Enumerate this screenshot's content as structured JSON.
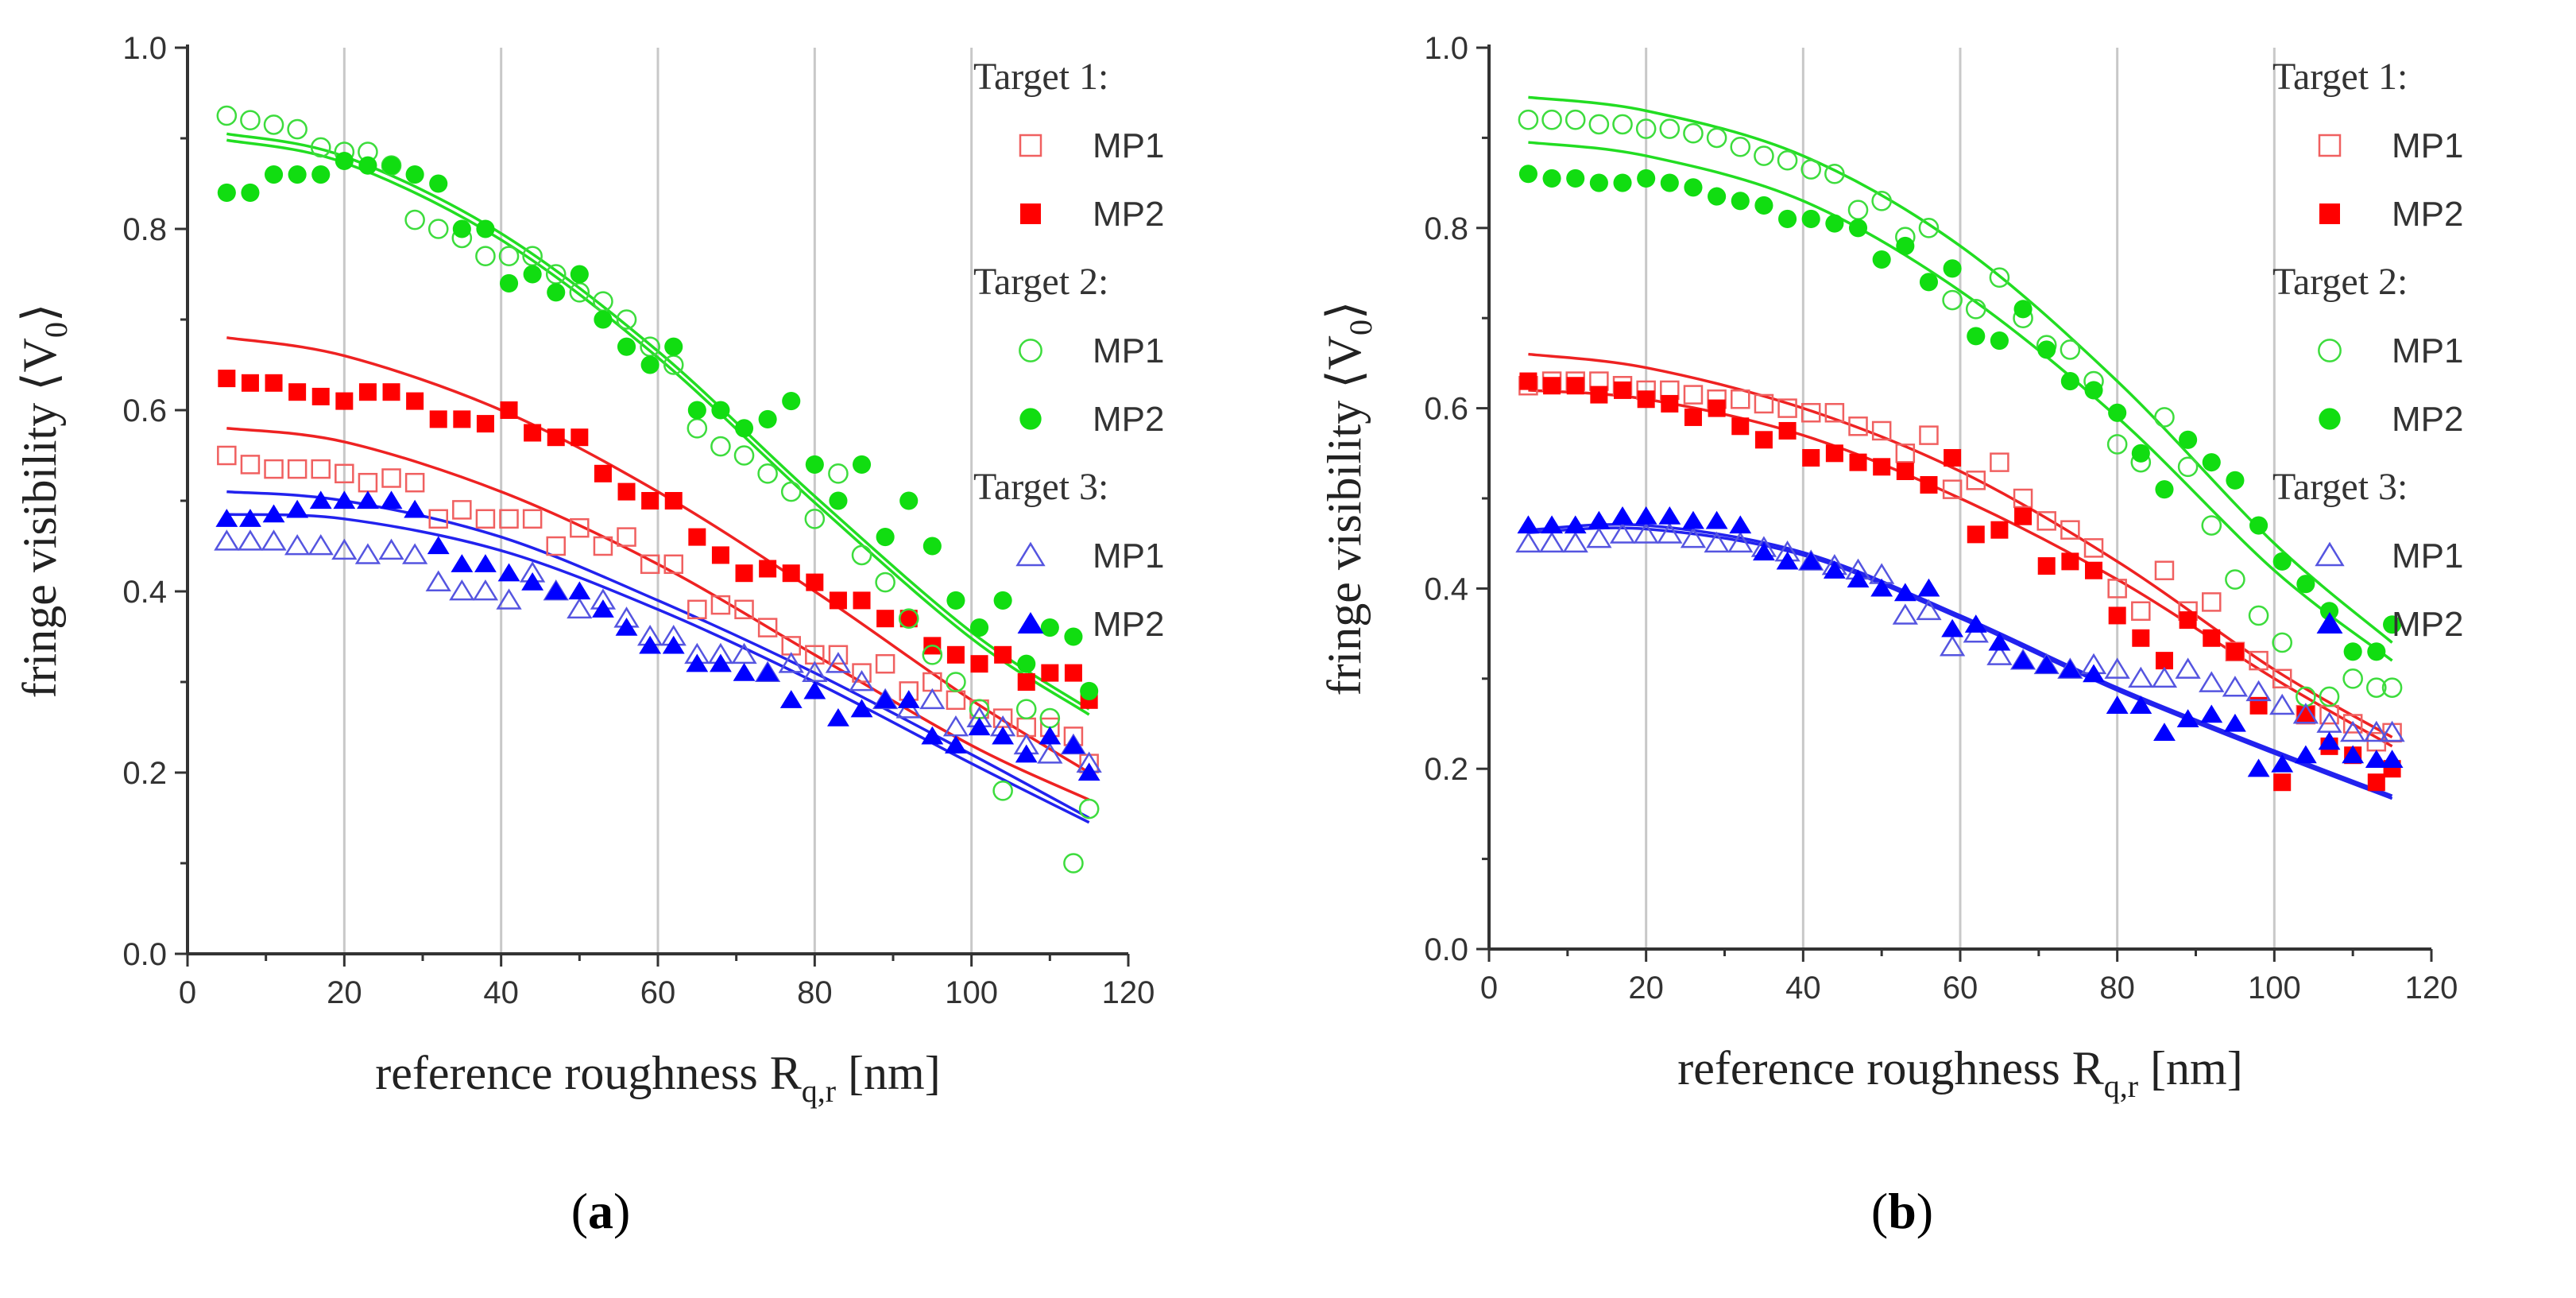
{
  "chart_data": [
    {
      "type": "scatter",
      "panel_label": "a",
      "xlabel": "reference roughness R",
      "xlabel_sub": "q,r",
      "xlabel_unit": "[nm]",
      "ylabel": "fringe visibility",
      "ylabel_symbol": "V",
      "ylabel_sub": "0",
      "xlim": [
        0,
        120
      ],
      "ylim": [
        0,
        1.0
      ],
      "xticks": [
        "0",
        "20",
        "40",
        "60",
        "80",
        "100",
        "120"
      ],
      "yticks": [
        "0.0",
        "0.2",
        "0.4",
        "0.6",
        "0.8",
        "1.0"
      ],
      "grid": "vertical",
      "legend_placement": "top-right",
      "legend": [
        {
          "heading": "Target 1:",
          "items": [
            "MP1",
            "MP2"
          ]
        },
        {
          "heading": "Target 2:",
          "items": [
            "MP1",
            "MP2"
          ]
        },
        {
          "heading": "Target 3:",
          "items": [
            "MP1",
            "MP2"
          ]
        }
      ],
      "x": [
        5,
        8,
        11,
        14,
        17,
        20,
        23,
        26,
        29,
        32,
        35,
        38,
        41,
        44,
        47,
        50,
        53,
        56,
        59,
        62,
        65,
        68,
        71,
        74,
        77,
        80,
        83,
        86,
        89,
        92,
        95,
        98,
        101,
        104,
        107,
        110,
        113,
        115
      ],
      "series": [
        {
          "name": "Target 1 MP1",
          "color": "#f06060",
          "marker": "square",
          "filled": false,
          "values": [
            0.55,
            0.54,
            0.535,
            0.535,
            0.535,
            0.53,
            0.52,
            0.525,
            0.52,
            0.48,
            0.49,
            0.48,
            0.48,
            0.48,
            0.45,
            0.47,
            0.45,
            0.46,
            0.43,
            0.43,
            0.38,
            0.385,
            0.38,
            0.36,
            0.34,
            0.33,
            0.33,
            0.31,
            0.32,
            0.29,
            0.3,
            0.28,
            0.27,
            0.26,
            0.25,
            0.25,
            0.24,
            0.21
          ]
        },
        {
          "name": "Target 1 MP2",
          "color": "#ff0000",
          "marker": "square",
          "filled": true,
          "values": [
            0.635,
            0.63,
            0.63,
            0.62,
            0.615,
            0.61,
            0.62,
            0.62,
            0.61,
            0.59,
            0.59,
            0.585,
            0.6,
            0.575,
            0.57,
            0.57,
            0.53,
            0.51,
            0.5,
            0.5,
            0.46,
            0.44,
            0.42,
            0.425,
            0.42,
            0.41,
            0.39,
            0.39,
            0.37,
            0.37,
            0.34,
            0.33,
            0.32,
            0.33,
            0.3,
            0.31,
            0.31,
            0.28
          ]
        },
        {
          "name": "Target 2 MP1",
          "color": "#3ddc3d",
          "marker": "circle",
          "filled": false,
          "values": [
            0.925,
            0.92,
            0.915,
            0.91,
            0.89,
            0.885,
            0.885,
            0.87,
            0.81,
            0.8,
            0.79,
            0.77,
            0.77,
            0.77,
            0.75,
            0.73,
            0.72,
            0.7,
            0.67,
            0.65,
            0.58,
            0.56,
            0.55,
            0.53,
            0.51,
            0.48,
            0.53,
            0.44,
            0.41,
            0.37,
            0.33,
            0.3,
            0.27,
            0.18,
            0.27,
            0.26,
            0.1,
            0.16
          ]
        },
        {
          "name": "Target 2 MP2",
          "color": "#11dd11",
          "marker": "circle",
          "filled": true,
          "values": [
            0.84,
            0.84,
            0.86,
            0.86,
            0.86,
            0.875,
            0.87,
            0.87,
            0.86,
            0.85,
            0.8,
            0.8,
            0.74,
            0.75,
            0.73,
            0.75,
            0.7,
            0.67,
            0.65,
            0.67,
            0.6,
            0.6,
            0.58,
            0.59,
            0.61,
            0.54,
            0.5,
            0.54,
            0.46,
            0.5,
            0.45,
            0.39,
            0.36,
            0.39,
            0.32,
            0.36,
            0.35,
            0.29
          ]
        },
        {
          "name": "Target 3 MP1",
          "color": "#5555e0",
          "marker": "triangle",
          "filled": false,
          "values": [
            0.455,
            0.455,
            0.455,
            0.45,
            0.45,
            0.445,
            0.44,
            0.445,
            0.44,
            0.41,
            0.4,
            0.4,
            0.39,
            0.42,
            0.4,
            0.38,
            0.39,
            0.37,
            0.35,
            0.35,
            0.33,
            0.33,
            0.33,
            0.31,
            0.32,
            0.31,
            0.32,
            0.3,
            0.28,
            0.27,
            0.28,
            0.25,
            0.26,
            0.25,
            0.23,
            0.22,
            0.23,
            0.21
          ]
        },
        {
          "name": "Target 3 MP2",
          "color": "#0000ff",
          "marker": "triangle",
          "filled": true,
          "values": [
            0.48,
            0.48,
            0.485,
            0.49,
            0.5,
            0.5,
            0.5,
            0.5,
            0.49,
            0.45,
            0.43,
            0.43,
            0.42,
            0.41,
            0.4,
            0.4,
            0.38,
            0.36,
            0.34,
            0.34,
            0.32,
            0.32,
            0.31,
            0.31,
            0.28,
            0.29,
            0.26,
            0.27,
            0.28,
            0.28,
            0.24,
            0.23,
            0.25,
            0.24,
            0.22,
            0.24,
            0.23,
            0.2
          ]
        }
      ],
      "fits": {
        "x": [
          5,
          20,
          40,
          60,
          80,
          100,
          115
        ],
        "lines": [
          {
            "color": "#22dd22",
            "values": [
              0.905,
              0.88,
              0.795,
              0.665,
              0.505,
              0.355,
              0.27
            ]
          },
          {
            "color": "#22dd22",
            "values": [
              0.898,
              0.873,
              0.788,
              0.658,
              0.498,
              0.348,
              0.264
            ]
          },
          {
            "color": "#ee2222",
            "values": [
              0.68,
              0.66,
              0.6,
              0.51,
              0.4,
              0.28,
              0.2
            ]
          },
          {
            "color": "#ee2222",
            "values": [
              0.58,
              0.565,
              0.51,
              0.43,
              0.33,
              0.23,
              0.17
            ]
          },
          {
            "color": "#2222ee",
            "values": [
              0.51,
              0.5,
              0.46,
              0.39,
              0.31,
              0.22,
              0.15
            ]
          },
          {
            "color": "#2222ee",
            "values": [
              0.485,
              0.48,
              0.445,
              0.38,
              0.3,
              0.21,
              0.145
            ]
          }
        ]
      }
    },
    {
      "type": "scatter",
      "panel_label": "b",
      "xlabel": "reference roughness R",
      "xlabel_sub": "q,r",
      "xlabel_unit": "[nm]",
      "ylabel": "fringe visibility",
      "ylabel_symbol": "V",
      "ylabel_sub": "0",
      "xlim": [
        0,
        120
      ],
      "ylim": [
        0,
        1.0
      ],
      "xticks": [
        "0",
        "20",
        "40",
        "60",
        "80",
        "100",
        "120"
      ],
      "yticks": [
        "0.0",
        "0.2",
        "0.4",
        "0.6",
        "0.8",
        "1.0"
      ],
      "grid": "vertical",
      "legend_placement": "top-right",
      "legend": [
        {
          "heading": "Target 1:",
          "items": [
            "MP1",
            "MP2"
          ]
        },
        {
          "heading": "Target 2:",
          "items": [
            "MP1",
            "MP2"
          ]
        },
        {
          "heading": "Target 3:",
          "items": [
            "MP1",
            "MP2"
          ]
        }
      ],
      "x": [
        5,
        8,
        11,
        14,
        17,
        20,
        23,
        26,
        29,
        32,
        35,
        38,
        41,
        44,
        47,
        50,
        53,
        56,
        59,
        62,
        65,
        68,
        71,
        74,
        77,
        80,
        83,
        86,
        89,
        92,
        95,
        98,
        101,
        104,
        107,
        110,
        113,
        115
      ],
      "series": [
        {
          "name": "Target 1 MP1",
          "color": "#f06060",
          "marker": "square",
          "filled": false,
          "values": [
            0.625,
            0.63,
            0.63,
            0.63,
            0.625,
            0.62,
            0.62,
            0.615,
            0.61,
            0.61,
            0.605,
            0.6,
            0.595,
            0.595,
            0.58,
            0.575,
            0.55,
            0.57,
            0.51,
            0.52,
            0.54,
            0.5,
            0.475,
            0.465,
            0.445,
            0.4,
            0.375,
            0.42,
            0.375,
            0.385,
            0.33,
            0.32,
            0.3,
            0.26,
            0.26,
            0.25,
            0.23,
            0.24
          ]
        },
        {
          "name": "Target 1 MP2",
          "color": "#ff0000",
          "marker": "square",
          "filled": true,
          "values": [
            0.63,
            0.625,
            0.625,
            0.615,
            0.62,
            0.61,
            0.605,
            0.59,
            0.6,
            0.58,
            0.565,
            0.575,
            0.545,
            0.55,
            0.54,
            0.535,
            0.53,
            0.515,
            0.545,
            0.46,
            0.465,
            0.48,
            0.425,
            0.43,
            0.42,
            0.37,
            0.345,
            0.32,
            0.365,
            0.345,
            0.33,
            0.27,
            0.185,
            0.26,
            0.225,
            0.215,
            0.185,
            0.2
          ]
        },
        {
          "name": "Target 2 MP1",
          "color": "#3ddc3d",
          "marker": "circle",
          "filled": false,
          "values": [
            0.92,
            0.92,
            0.92,
            0.915,
            0.915,
            0.91,
            0.91,
            0.905,
            0.9,
            0.89,
            0.88,
            0.875,
            0.865,
            0.86,
            0.82,
            0.83,
            0.79,
            0.8,
            0.72,
            0.71,
            0.745,
            0.7,
            0.67,
            0.665,
            0.63,
            0.56,
            0.54,
            0.59,
            0.535,
            0.47,
            0.41,
            0.37,
            0.34,
            0.28,
            0.28,
            0.3,
            0.29,
            0.29
          ]
        },
        {
          "name": "Target 2 MP2",
          "color": "#11dd11",
          "marker": "circle",
          "filled": true,
          "values": [
            0.86,
            0.855,
            0.855,
            0.85,
            0.85,
            0.855,
            0.85,
            0.845,
            0.835,
            0.83,
            0.825,
            0.81,
            0.81,
            0.805,
            0.8,
            0.765,
            0.78,
            0.74,
            0.755,
            0.68,
            0.675,
            0.71,
            0.665,
            0.63,
            0.62,
            0.595,
            0.55,
            0.51,
            0.565,
            0.54,
            0.52,
            0.47,
            0.43,
            0.405,
            0.375,
            0.33,
            0.33,
            0.36
          ]
        },
        {
          "name": "Target 3 MP1",
          "color": "#5555e0",
          "marker": "triangle",
          "filled": false,
          "values": [
            0.45,
            0.45,
            0.45,
            0.455,
            0.46,
            0.46,
            0.46,
            0.455,
            0.45,
            0.45,
            0.445,
            0.44,
            0.43,
            0.425,
            0.42,
            0.415,
            0.37,
            0.375,
            0.335,
            0.35,
            0.325,
            0.32,
            0.315,
            0.31,
            0.315,
            0.31,
            0.3,
            0.3,
            0.31,
            0.295,
            0.29,
            0.285,
            0.27,
            0.26,
            0.25,
            0.24,
            0.24,
            0.24
          ]
        },
        {
          "name": "Target 3 MP2",
          "color": "#0000ff",
          "marker": "triangle",
          "filled": true,
          "values": [
            0.47,
            0.47,
            0.47,
            0.475,
            0.48,
            0.48,
            0.48,
            0.475,
            0.475,
            0.47,
            0.44,
            0.43,
            0.43,
            0.42,
            0.41,
            0.4,
            0.395,
            0.4,
            0.355,
            0.36,
            0.34,
            0.32,
            0.315,
            0.31,
            0.305,
            0.27,
            0.27,
            0.24,
            0.255,
            0.26,
            0.25,
            0.2,
            0.205,
            0.215,
            0.23,
            0.215,
            0.21,
            0.21
          ]
        }
      ],
      "fits": {
        "x": [
          5,
          20,
          40,
          60,
          80,
          100,
          115
        ],
        "lines": [
          {
            "color": "#22dd22",
            "values": [
              0.945,
              0.93,
              0.88,
              0.78,
              0.63,
              0.45,
              0.34
            ]
          },
          {
            "color": "#22dd22",
            "values": [
              0.895,
              0.88,
              0.83,
              0.73,
              0.59,
              0.42,
              0.32
            ]
          },
          {
            "color": "#ee2222",
            "values": [
              0.66,
              0.645,
              0.6,
              0.53,
              0.43,
              0.31,
              0.235
            ]
          },
          {
            "color": "#ee2222",
            "values": [
              0.62,
              0.61,
              0.57,
              0.5,
              0.41,
              0.3,
              0.225
            ]
          },
          {
            "color": "#2222ee",
            "values": [
              0.465,
              0.47,
              0.44,
              0.37,
              0.29,
              0.22,
              0.17
            ]
          },
          {
            "color": "#2222ee",
            "values": [
              0.462,
              0.466,
              0.437,
              0.367,
              0.287,
              0.217,
              0.167
            ]
          }
        ]
      }
    }
  ]
}
